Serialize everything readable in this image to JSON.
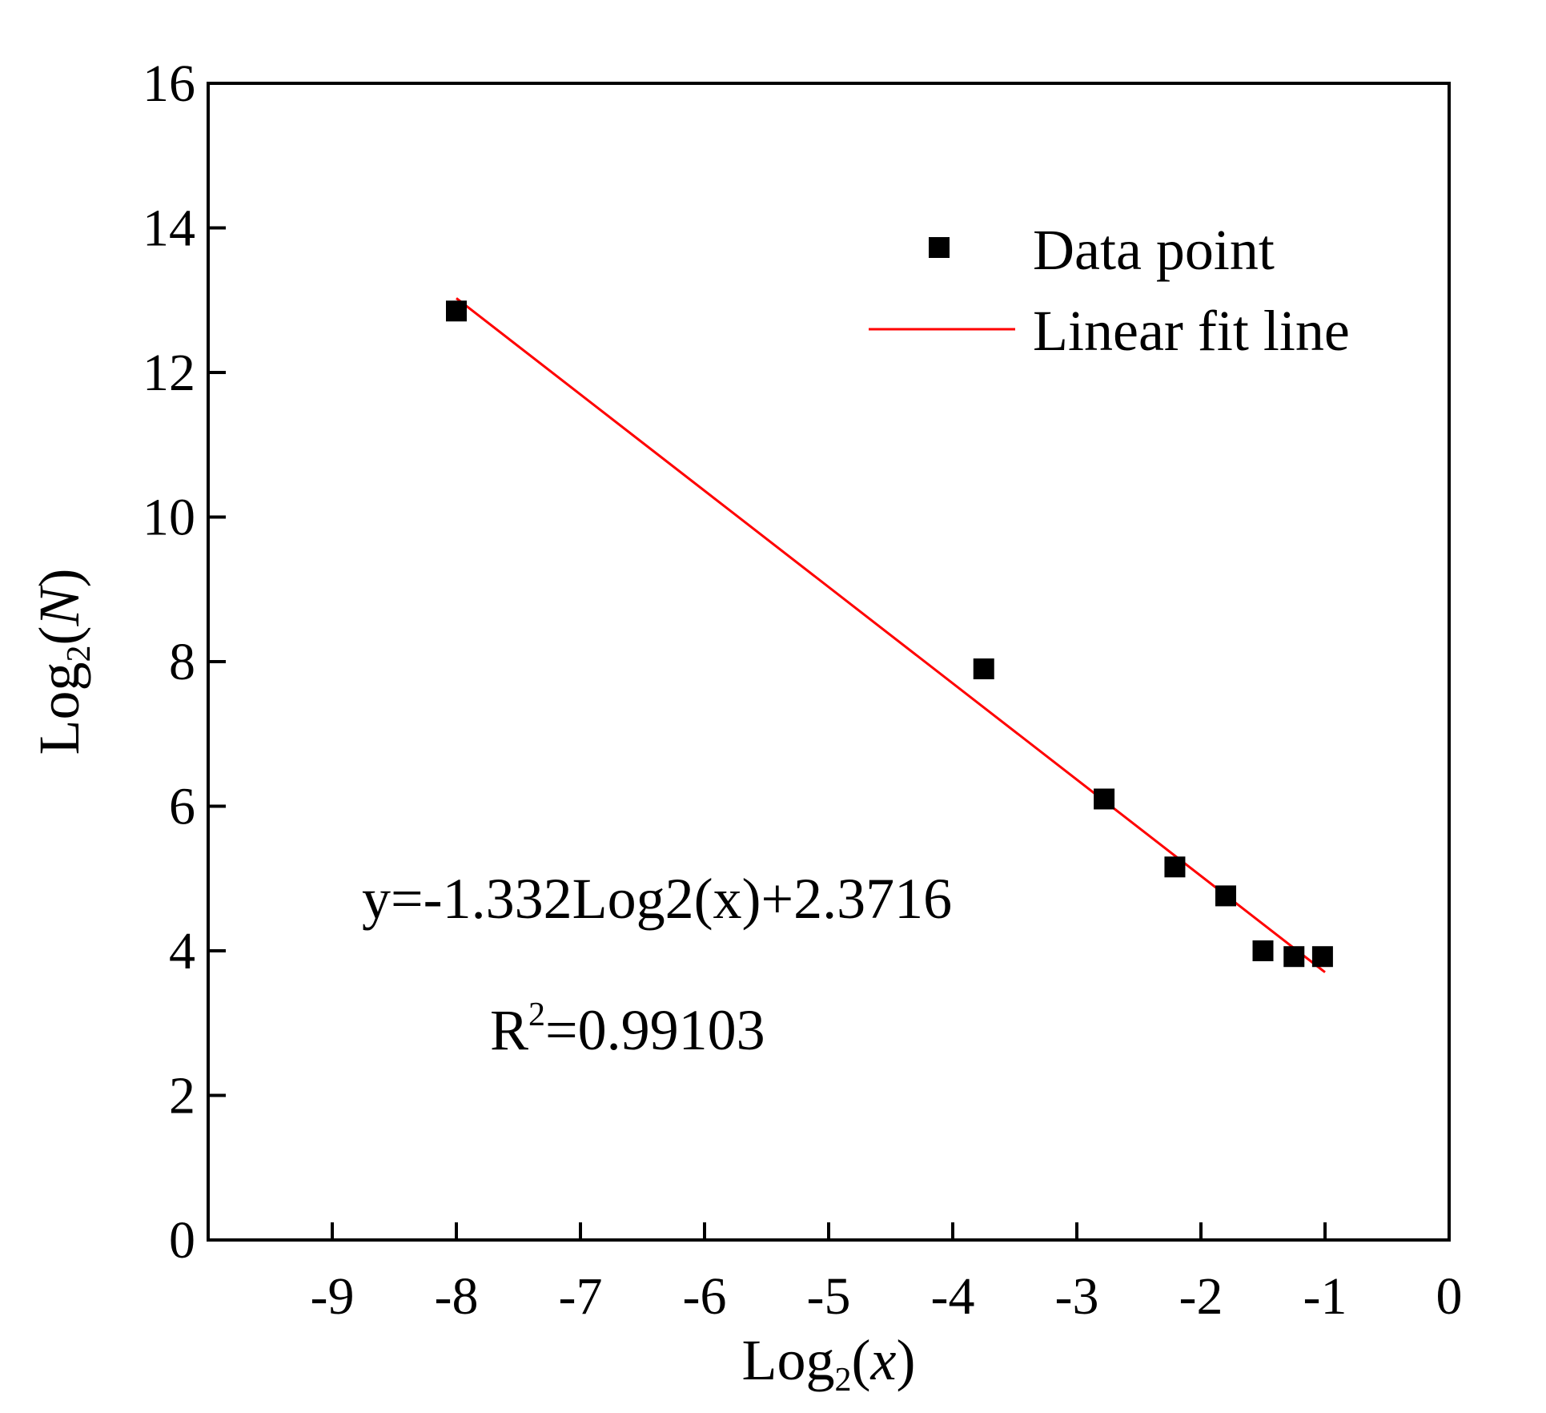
{
  "chart_data": {
    "type": "scatter",
    "title": "",
    "xlabel": {
      "base": "Log",
      "sub": "2",
      "arg": "x"
    },
    "ylabel": {
      "base": "Log",
      "sub": "2",
      "arg": "N"
    },
    "xlim": [
      -10,
      0
    ],
    "ylim": [
      0,
      16
    ],
    "xticks": [
      -9,
      -8,
      -7,
      -6,
      -5,
      -4,
      -3,
      -2,
      -1,
      0
    ],
    "yticks": [
      0,
      2,
      4,
      6,
      8,
      10,
      12,
      14,
      16
    ],
    "grid": false,
    "legend_position": "top-right",
    "series": [
      {
        "name": "Data point",
        "kind": "scatter",
        "marker": "square",
        "color": "#000000",
        "x": [
          -8.0,
          -3.75,
          -2.78,
          -2.21,
          -1.8,
          -1.5,
          -1.25,
          -1.02
        ],
        "y": [
          12.85,
          7.9,
          6.1,
          5.16,
          4.76,
          4.0,
          3.92,
          3.92
        ]
      },
      {
        "name": "Linear fit line",
        "kind": "line",
        "color": "#ff0000",
        "slope": -1.332,
        "intercept": 2.3716,
        "x_range": [
          -8.0,
          -1.0
        ]
      }
    ],
    "annotations": {
      "equation": "y=-1.332Log2(x)+2.3716",
      "r2_prefix": "R",
      "r2_sup": "2",
      "r2_value": "=0.99103"
    }
  }
}
